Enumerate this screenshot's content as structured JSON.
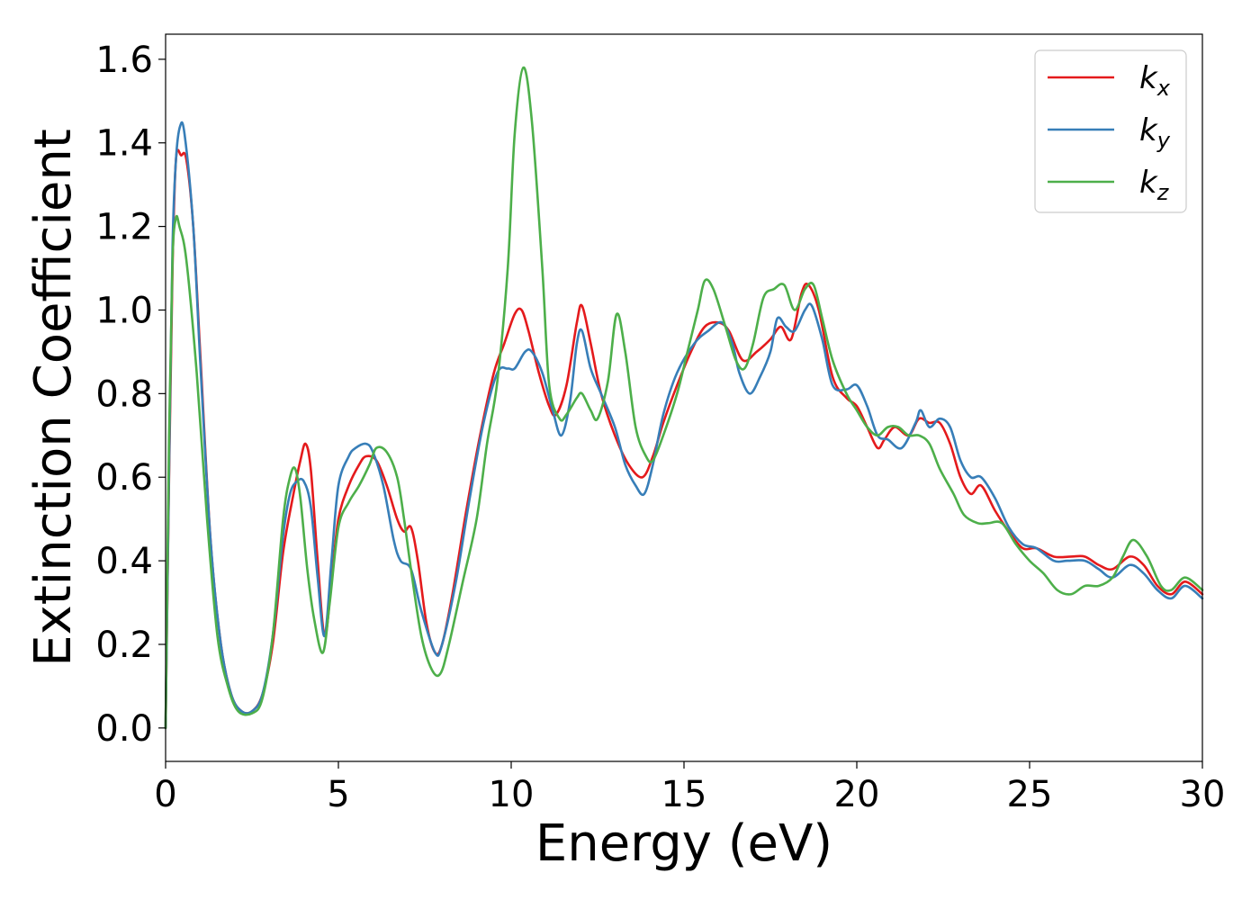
{
  "chart_data": {
    "type": "line",
    "title": "",
    "xlabel": "Energy (eV)",
    "ylabel": "Extinction Coefficient",
    "xlim": [
      0,
      30
    ],
    "ylim": [
      -0.08,
      1.66
    ],
    "xticks": [
      0,
      5,
      10,
      15,
      20,
      25,
      30
    ],
    "yticks": [
      0.0,
      0.2,
      0.4,
      0.6,
      0.8,
      1.0,
      1.2,
      1.4,
      1.6
    ],
    "grid": false,
    "legend_position": "top-right",
    "series": [
      {
        "name": "kx",
        "label_base": "k",
        "label_sub": "x",
        "color": "#e41a1c",
        "points": [
          [
            0,
            0.0
          ],
          [
            0.1,
            0.6
          ],
          [
            0.2,
            1.1
          ],
          [
            0.3,
            1.36
          ],
          [
            0.45,
            1.37
          ],
          [
            0.6,
            1.36
          ],
          [
            0.8,
            1.2
          ],
          [
            1.0,
            0.9
          ],
          [
            1.3,
            0.45
          ],
          [
            1.6,
            0.2
          ],
          [
            1.9,
            0.08
          ],
          [
            2.2,
            0.04
          ],
          [
            2.5,
            0.04
          ],
          [
            2.8,
            0.08
          ],
          [
            3.1,
            0.2
          ],
          [
            3.4,
            0.42
          ],
          [
            3.7,
            0.56
          ],
          [
            3.9,
            0.64
          ],
          [
            4.05,
            0.68
          ],
          [
            4.2,
            0.62
          ],
          [
            4.4,
            0.4
          ],
          [
            4.6,
            0.22
          ],
          [
            4.8,
            0.35
          ],
          [
            5.0,
            0.5
          ],
          [
            5.3,
            0.58
          ],
          [
            5.6,
            0.63
          ],
          [
            5.8,
            0.65
          ],
          [
            6.1,
            0.64
          ],
          [
            6.4,
            0.58
          ],
          [
            6.7,
            0.5
          ],
          [
            6.9,
            0.47
          ],
          [
            7.1,
            0.48
          ],
          [
            7.3,
            0.4
          ],
          [
            7.55,
            0.25
          ],
          [
            7.8,
            0.18
          ],
          [
            8.0,
            0.2
          ],
          [
            8.3,
            0.32
          ],
          [
            8.7,
            0.52
          ],
          [
            9.1,
            0.7
          ],
          [
            9.5,
            0.85
          ],
          [
            9.8,
            0.92
          ],
          [
            10.1,
            0.99
          ],
          [
            10.3,
            1.0
          ],
          [
            10.5,
            0.95
          ],
          [
            10.8,
            0.85
          ],
          [
            11.1,
            0.77
          ],
          [
            11.3,
            0.75
          ],
          [
            11.6,
            0.82
          ],
          [
            11.9,
            0.97
          ],
          [
            12.05,
            1.01
          ],
          [
            12.3,
            0.92
          ],
          [
            12.6,
            0.8
          ],
          [
            13.0,
            0.7
          ],
          [
            13.4,
            0.63
          ],
          [
            13.8,
            0.6
          ],
          [
            14.1,
            0.65
          ],
          [
            14.4,
            0.73
          ],
          [
            14.8,
            0.82
          ],
          [
            15.2,
            0.9
          ],
          [
            15.6,
            0.96
          ],
          [
            16.0,
            0.97
          ],
          [
            16.3,
            0.95
          ],
          [
            16.7,
            0.88
          ],
          [
            17.1,
            0.9
          ],
          [
            17.5,
            0.93
          ],
          [
            17.8,
            0.96
          ],
          [
            18.1,
            0.93
          ],
          [
            18.4,
            1.04
          ],
          [
            18.6,
            1.06
          ],
          [
            18.9,
            1.0
          ],
          [
            19.3,
            0.84
          ],
          [
            19.7,
            0.79
          ],
          [
            20.0,
            0.77
          ],
          [
            20.3,
            0.72
          ],
          [
            20.6,
            0.67
          ],
          [
            20.8,
            0.69
          ],
          [
            21.1,
            0.72
          ],
          [
            21.5,
            0.7
          ],
          [
            21.8,
            0.74
          ],
          [
            22.1,
            0.73
          ],
          [
            22.4,
            0.73
          ],
          [
            22.7,
            0.68
          ],
          [
            23.0,
            0.6
          ],
          [
            23.3,
            0.56
          ],
          [
            23.6,
            0.58
          ],
          [
            24.0,
            0.52
          ],
          [
            24.4,
            0.47
          ],
          [
            24.8,
            0.43
          ],
          [
            25.2,
            0.43
          ],
          [
            25.7,
            0.41
          ],
          [
            26.2,
            0.41
          ],
          [
            26.6,
            0.41
          ],
          [
            27.0,
            0.39
          ],
          [
            27.4,
            0.38
          ],
          [
            27.9,
            0.41
          ],
          [
            28.3,
            0.39
          ],
          [
            28.7,
            0.34
          ],
          [
            29.1,
            0.32
          ],
          [
            29.5,
            0.35
          ],
          [
            30,
            0.32
          ]
        ]
      },
      {
        "name": "ky",
        "label_base": "k",
        "label_sub": "y",
        "color": "#377eb8",
        "points": [
          [
            0,
            0.0
          ],
          [
            0.1,
            0.62
          ],
          [
            0.2,
            1.15
          ],
          [
            0.3,
            1.36
          ],
          [
            0.42,
            1.44
          ],
          [
            0.55,
            1.42
          ],
          [
            0.8,
            1.2
          ],
          [
            1.0,
            0.88
          ],
          [
            1.3,
            0.45
          ],
          [
            1.6,
            0.2
          ],
          [
            1.9,
            0.08
          ],
          [
            2.2,
            0.04
          ],
          [
            2.5,
            0.04
          ],
          [
            2.8,
            0.08
          ],
          [
            3.1,
            0.22
          ],
          [
            3.4,
            0.46
          ],
          [
            3.6,
            0.56
          ],
          [
            3.8,
            0.59
          ],
          [
            4.0,
            0.59
          ],
          [
            4.2,
            0.53
          ],
          [
            4.4,
            0.36
          ],
          [
            4.6,
            0.22
          ],
          [
            4.8,
            0.4
          ],
          [
            5.0,
            0.58
          ],
          [
            5.3,
            0.65
          ],
          [
            5.5,
            0.67
          ],
          [
            5.8,
            0.68
          ],
          [
            6.0,
            0.66
          ],
          [
            6.3,
            0.58
          ],
          [
            6.6,
            0.45
          ],
          [
            6.8,
            0.4
          ],
          [
            7.1,
            0.38
          ],
          [
            7.4,
            0.28
          ],
          [
            7.8,
            0.18
          ],
          [
            8.0,
            0.2
          ],
          [
            8.4,
            0.35
          ],
          [
            8.8,
            0.55
          ],
          [
            9.2,
            0.73
          ],
          [
            9.6,
            0.85
          ],
          [
            9.9,
            0.86
          ],
          [
            10.1,
            0.86
          ],
          [
            10.4,
            0.9
          ],
          [
            10.6,
            0.9
          ],
          [
            10.9,
            0.85
          ],
          [
            11.2,
            0.76
          ],
          [
            11.45,
            0.7
          ],
          [
            11.7,
            0.78
          ],
          [
            11.9,
            0.92
          ],
          [
            12.05,
            0.95
          ],
          [
            12.3,
            0.86
          ],
          [
            12.6,
            0.8
          ],
          [
            13.0,
            0.72
          ],
          [
            13.3,
            0.63
          ],
          [
            13.6,
            0.58
          ],
          [
            13.85,
            0.56
          ],
          [
            14.1,
            0.63
          ],
          [
            14.4,
            0.75
          ],
          [
            14.8,
            0.85
          ],
          [
            15.3,
            0.92
          ],
          [
            15.7,
            0.95
          ],
          [
            16.1,
            0.97
          ],
          [
            16.4,
            0.92
          ],
          [
            16.6,
            0.85
          ],
          [
            16.9,
            0.8
          ],
          [
            17.2,
            0.84
          ],
          [
            17.5,
            0.9
          ],
          [
            17.7,
            0.98
          ],
          [
            17.95,
            0.96
          ],
          [
            18.2,
            0.95
          ],
          [
            18.5,
            1.0
          ],
          [
            18.7,
            1.01
          ],
          [
            19.0,
            0.93
          ],
          [
            19.3,
            0.82
          ],
          [
            19.7,
            0.81
          ],
          [
            20.0,
            0.82
          ],
          [
            20.3,
            0.77
          ],
          [
            20.6,
            0.7
          ],
          [
            20.9,
            0.69
          ],
          [
            21.3,
            0.67
          ],
          [
            21.7,
            0.73
          ],
          [
            21.85,
            0.76
          ],
          [
            22.1,
            0.72
          ],
          [
            22.4,
            0.74
          ],
          [
            22.7,
            0.72
          ],
          [
            23.0,
            0.64
          ],
          [
            23.3,
            0.6
          ],
          [
            23.6,
            0.6
          ],
          [
            24.0,
            0.55
          ],
          [
            24.4,
            0.48
          ],
          [
            24.8,
            0.44
          ],
          [
            25.2,
            0.43
          ],
          [
            25.7,
            0.4
          ],
          [
            26.1,
            0.4
          ],
          [
            26.6,
            0.4
          ],
          [
            27.0,
            0.38
          ],
          [
            27.4,
            0.36
          ],
          [
            27.9,
            0.39
          ],
          [
            28.3,
            0.37
          ],
          [
            28.7,
            0.33
          ],
          [
            29.1,
            0.31
          ],
          [
            29.5,
            0.34
          ],
          [
            30,
            0.31
          ]
        ]
      },
      {
        "name": "kz",
        "label_base": "k",
        "label_sub": "z",
        "color": "#4daf4a",
        "points": [
          [
            0,
            0.0
          ],
          [
            0.1,
            0.7
          ],
          [
            0.2,
            1.12
          ],
          [
            0.3,
            1.22
          ],
          [
            0.4,
            1.2
          ],
          [
            0.6,
            1.12
          ],
          [
            0.9,
            0.85
          ],
          [
            1.2,
            0.5
          ],
          [
            1.5,
            0.22
          ],
          [
            1.8,
            0.1
          ],
          [
            2.1,
            0.04
          ],
          [
            2.5,
            0.035
          ],
          [
            2.8,
            0.07
          ],
          [
            3.1,
            0.22
          ],
          [
            3.4,
            0.5
          ],
          [
            3.6,
            0.6
          ],
          [
            3.75,
            0.62
          ],
          [
            3.9,
            0.55
          ],
          [
            4.1,
            0.38
          ],
          [
            4.3,
            0.26
          ],
          [
            4.55,
            0.18
          ],
          [
            4.75,
            0.3
          ],
          [
            5.0,
            0.48
          ],
          [
            5.3,
            0.54
          ],
          [
            5.6,
            0.58
          ],
          [
            5.9,
            0.63
          ],
          [
            6.1,
            0.67
          ],
          [
            6.4,
            0.66
          ],
          [
            6.7,
            0.6
          ],
          [
            6.9,
            0.5
          ],
          [
            7.1,
            0.38
          ],
          [
            7.4,
            0.22
          ],
          [
            7.7,
            0.14
          ],
          [
            7.95,
            0.13
          ],
          [
            8.2,
            0.2
          ],
          [
            8.6,
            0.35
          ],
          [
            9.0,
            0.5
          ],
          [
            9.3,
            0.68
          ],
          [
            9.6,
            0.83
          ],
          [
            9.9,
            1.1
          ],
          [
            10.1,
            1.42
          ],
          [
            10.35,
            1.58
          ],
          [
            10.6,
            1.45
          ],
          [
            10.9,
            1.1
          ],
          [
            11.1,
            0.82
          ],
          [
            11.4,
            0.74
          ],
          [
            11.6,
            0.75
          ],
          [
            11.9,
            0.79
          ],
          [
            12.05,
            0.8
          ],
          [
            12.3,
            0.76
          ],
          [
            12.5,
            0.74
          ],
          [
            12.8,
            0.83
          ],
          [
            13.05,
            0.99
          ],
          [
            13.3,
            0.9
          ],
          [
            13.6,
            0.72
          ],
          [
            13.9,
            0.65
          ],
          [
            14.1,
            0.64
          ],
          [
            14.4,
            0.7
          ],
          [
            14.8,
            0.8
          ],
          [
            15.1,
            0.9
          ],
          [
            15.4,
            1.0
          ],
          [
            15.6,
            1.07
          ],
          [
            15.85,
            1.05
          ],
          [
            16.2,
            0.96
          ],
          [
            16.5,
            0.88
          ],
          [
            16.75,
            0.86
          ],
          [
            17.0,
            0.92
          ],
          [
            17.3,
            1.03
          ],
          [
            17.6,
            1.05
          ],
          [
            17.9,
            1.06
          ],
          [
            18.2,
            1.0
          ],
          [
            18.5,
            1.05
          ],
          [
            18.75,
            1.06
          ],
          [
            19.0,
            0.98
          ],
          [
            19.3,
            0.88
          ],
          [
            19.7,
            0.8
          ],
          [
            20.0,
            0.76
          ],
          [
            20.3,
            0.72
          ],
          [
            20.6,
            0.7
          ],
          [
            20.9,
            0.72
          ],
          [
            21.2,
            0.72
          ],
          [
            21.5,
            0.7
          ],
          [
            21.8,
            0.7
          ],
          [
            22.1,
            0.68
          ],
          [
            22.4,
            0.62
          ],
          [
            22.8,
            0.56
          ],
          [
            23.1,
            0.51
          ],
          [
            23.5,
            0.49
          ],
          [
            23.8,
            0.49
          ],
          [
            24.2,
            0.49
          ],
          [
            24.6,
            0.44
          ],
          [
            25.0,
            0.4
          ],
          [
            25.4,
            0.37
          ],
          [
            25.8,
            0.33
          ],
          [
            26.2,
            0.32
          ],
          [
            26.6,
            0.34
          ],
          [
            27.0,
            0.34
          ],
          [
            27.4,
            0.36
          ],
          [
            27.7,
            0.41
          ],
          [
            28.0,
            0.45
          ],
          [
            28.4,
            0.41
          ],
          [
            28.8,
            0.34
          ],
          [
            29.1,
            0.33
          ],
          [
            29.5,
            0.36
          ],
          [
            30,
            0.33
          ]
        ]
      }
    ]
  }
}
